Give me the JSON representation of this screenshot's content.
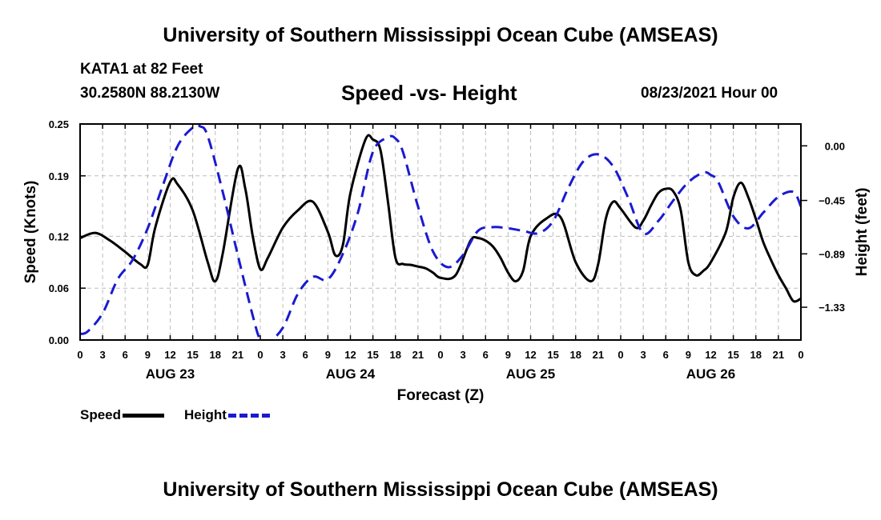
{
  "header": {
    "title": "University of Southern Mississippi Ocean Cube (AMSEAS)",
    "station": "KATA1 at 82 Feet",
    "coords": "30.2580N  88.2130W",
    "chart_title": "Speed -vs- Height",
    "forecast_time": "08/23/2021 Hour 00"
  },
  "footer": {
    "title": "University of Southern Mississippi Ocean Cube (AMSEAS)"
  },
  "legend": {
    "speed_label": "Speed",
    "height_label": "Height"
  },
  "colors": {
    "speed": "#000000",
    "height": "#1a1ad0",
    "grid": "#bdbdbd"
  },
  "chart_data": {
    "type": "line",
    "title": "Speed -vs- Height",
    "xlabel": "Forecast (Z)",
    "ylabel": "Speed (Knots)",
    "y2label": "Height (feet)",
    "xlim": [
      0,
      96
    ],
    "ylim": [
      0,
      0.25
    ],
    "y2lim": [
      -1.6,
      0.18
    ],
    "x_ticks": [
      0,
      3,
      6,
      9,
      12,
      15,
      18,
      21,
      24,
      27,
      30,
      33,
      36,
      39,
      42,
      45,
      48,
      51,
      54,
      57,
      60,
      63,
      66,
      69,
      72,
      75,
      78,
      81,
      84,
      87,
      90,
      93,
      96
    ],
    "x_tick_labels": [
      "0",
      "3",
      "6",
      "9",
      "12",
      "15",
      "18",
      "21",
      "0",
      "3",
      "6",
      "9",
      "12",
      "15",
      "18",
      "21",
      "0",
      "3",
      "6",
      "9",
      "12",
      "15",
      "18",
      "21",
      "0",
      "3",
      "6",
      "9",
      "12",
      "15",
      "18",
      "21",
      "0"
    ],
    "date_labels": [
      {
        "x": 12,
        "label": "AUG 23"
      },
      {
        "x": 36,
        "label": "AUG 24"
      },
      {
        "x": 60,
        "label": "AUG 25"
      },
      {
        "x": 84,
        "label": "AUG 26"
      }
    ],
    "y_ticks": [
      0,
      0.06,
      0.12,
      0.19,
      0.25
    ],
    "y_tick_labels": [
      "0.00",
      "0.06",
      "0.12",
      "0.19",
      "0.25"
    ],
    "y2_ticks": [
      0.0,
      -0.45,
      -0.89,
      -1.33
    ],
    "y2_tick_labels": [
      "0.00",
      "−0.45",
      "−0.89",
      "−1.33"
    ],
    "grid": true,
    "series": [
      {
        "name": "Speed",
        "axis": "left",
        "style": "solid",
        "x": [
          0,
          2,
          4,
          6,
          8,
          9,
          10,
          12,
          13,
          15,
          17,
          18,
          19,
          21,
          22,
          23,
          24,
          25,
          27,
          29,
          31,
          33,
          34,
          35,
          36,
          38,
          39,
          40,
          41,
          42,
          43,
          44,
          45,
          46,
          47,
          48,
          50,
          52,
          53,
          54,
          55,
          56,
          57,
          58,
          59,
          60,
          62,
          64,
          66,
          68,
          69,
          70,
          71,
          72,
          74,
          75,
          76,
          77,
          78,
          79,
          80,
          81,
          82,
          83,
          84,
          86,
          87,
          88,
          89,
          90,
          91,
          92,
          93,
          94,
          95,
          96
        ],
        "values": [
          0.118,
          0.124,
          0.115,
          0.102,
          0.088,
          0.087,
          0.13,
          0.183,
          0.18,
          0.15,
          0.09,
          0.068,
          0.1,
          0.198,
          0.175,
          0.12,
          0.082,
          0.095,
          0.13,
          0.15,
          0.16,
          0.125,
          0.098,
          0.11,
          0.17,
          0.232,
          0.232,
          0.22,
          0.16,
          0.095,
          0.088,
          0.087,
          0.085,
          0.083,
          0.078,
          0.072,
          0.075,
          0.115,
          0.118,
          0.115,
          0.108,
          0.095,
          0.078,
          0.068,
          0.08,
          0.12,
          0.14,
          0.142,
          0.09,
          0.068,
          0.088,
          0.14,
          0.16,
          0.152,
          0.13,
          0.138,
          0.155,
          0.17,
          0.175,
          0.172,
          0.15,
          0.09,
          0.075,
          0.08,
          0.09,
          0.125,
          0.165,
          0.182,
          0.165,
          0.14,
          0.113,
          0.093,
          0.075,
          0.06,
          0.045,
          0.048
        ]
      },
      {
        "name": "Height",
        "axis": "right",
        "style": "dashed",
        "x": [
          0,
          1,
          3,
          5,
          7,
          9,
          11,
          13,
          15,
          16,
          17,
          19,
          21,
          23,
          24,
          25,
          27,
          29,
          31,
          33,
          35,
          37,
          39,
          41,
          42,
          43,
          45,
          47,
          49,
          51,
          53,
          55,
          57,
          59,
          61,
          63,
          65,
          67,
          69,
          71,
          73,
          75,
          77,
          79,
          81,
          83,
          84,
          85,
          87,
          89,
          91,
          93,
          95,
          96
        ],
        "values": [
          -1.55,
          -1.53,
          -1.38,
          -1.1,
          -0.94,
          -0.68,
          -0.33,
          0.0,
          0.15,
          0.16,
          0.08,
          -0.38,
          -0.9,
          -1.4,
          -1.6,
          -1.62,
          -1.5,
          -1.22,
          -1.08,
          -1.1,
          -0.89,
          -0.55,
          -0.05,
          0.07,
          0.06,
          -0.05,
          -0.5,
          -0.87,
          -1.0,
          -0.9,
          -0.7,
          -0.67,
          -0.68,
          -0.7,
          -0.72,
          -0.62,
          -0.35,
          -0.13,
          -0.07,
          -0.17,
          -0.43,
          -0.72,
          -0.62,
          -0.45,
          -0.3,
          -0.22,
          -0.24,
          -0.3,
          -0.58,
          -0.68,
          -0.55,
          -0.42,
          -0.38,
          -0.5
        ]
      }
    ]
  }
}
